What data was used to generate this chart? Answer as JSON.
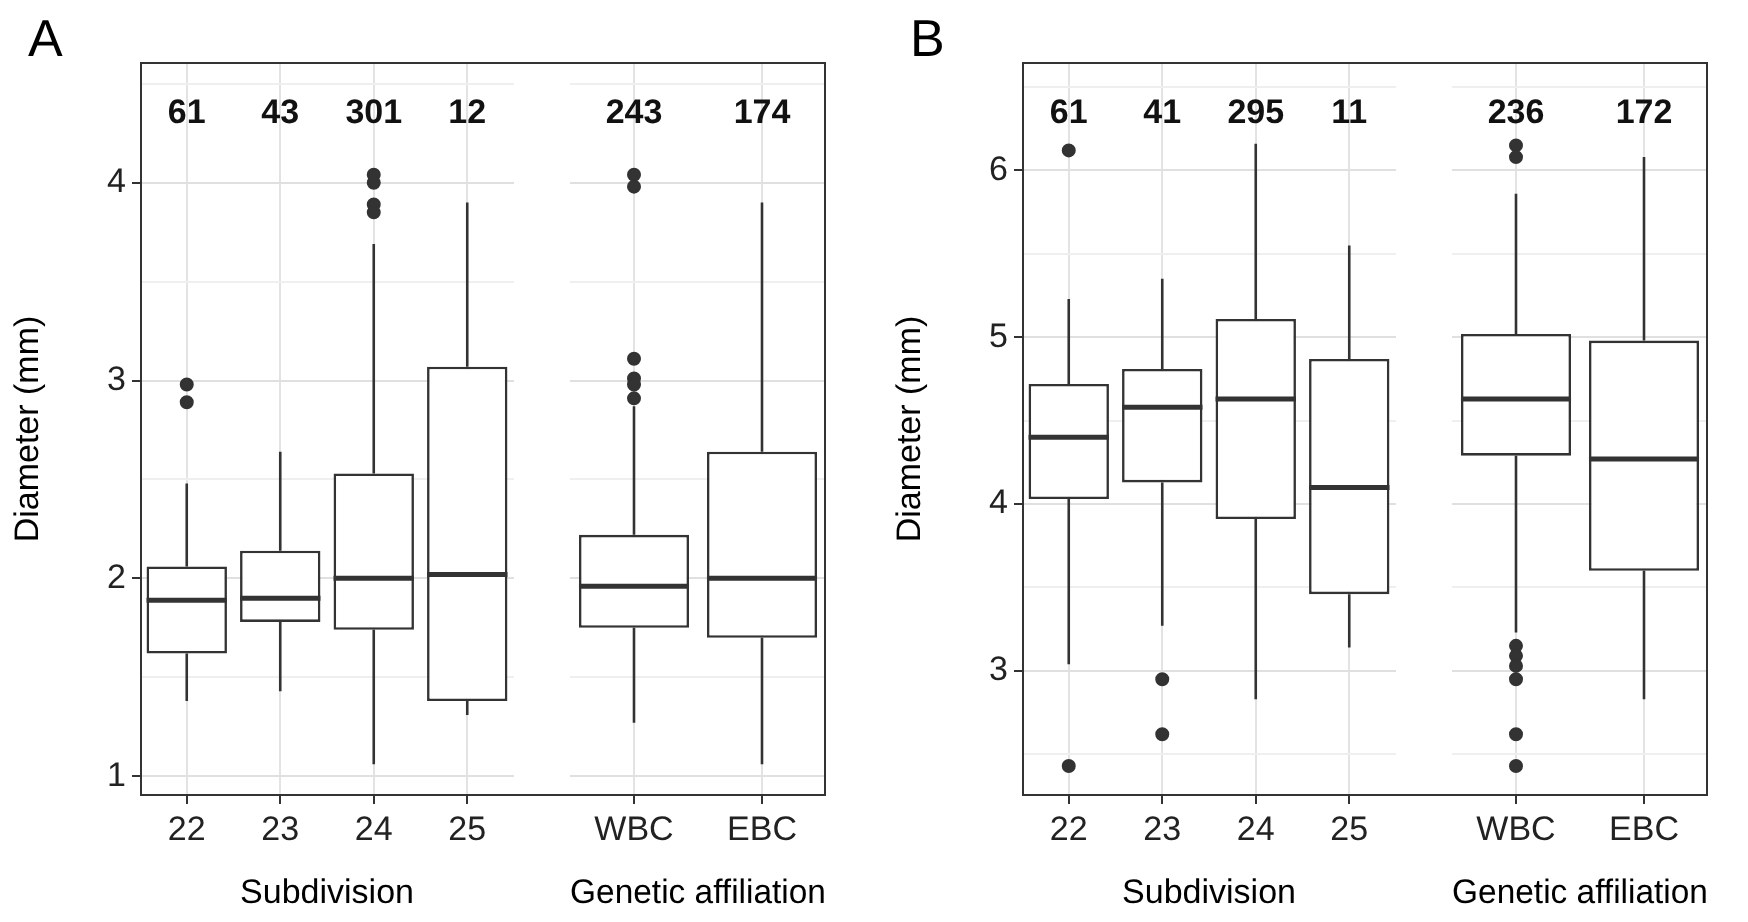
{
  "chart_data": [
    {
      "type": "box",
      "title": "A",
      "xlabel": "Subdivision",
      "ylabel": "Diameter (mm)",
      "categories": [
        "22",
        "23",
        "24",
        "25"
      ],
      "color": "#333333",
      "ylim": [
        0.9,
        4.61
      ],
      "yticks": [
        1,
        {
          "value": 1.5,
          "label": null
        },
        2,
        {
          "value": 2.5,
          "label": null
        },
        3,
        {
          "value": 3.5,
          "label": null
        },
        4,
        {
          "value": 4.5,
          "label": null
        }
      ],
      "grid": true,
      "boxes": [
        {
          "low": 1.38,
          "q1": 1.62,
          "median": 1.89,
          "q3": 2.06,
          "high": 2.48,
          "outliers": [
            2.98,
            2.89
          ]
        },
        {
          "low": 1.43,
          "q1": 1.78,
          "median": 1.9,
          "q3": 2.14,
          "high": 2.64
        },
        {
          "low": 1.06,
          "q1": 1.74,
          "median": 2.0,
          "q3": 2.53,
          "high": 3.69,
          "outliers": [
            4.04,
            4.0,
            3.89,
            3.85
          ]
        },
        {
          "low": 1.31,
          "q1": 1.38,
          "median": 2.02,
          "q3": 3.07,
          "high": 3.9
        }
      ],
      "annotations": [
        "61",
        "43",
        "301",
        "12"
      ]
    },
    {
      "type": "box",
      "xlabel": "Genetic affiliation",
      "categories": [
        "WBC",
        "EBC"
      ],
      "color": "#333333",
      "ylim": [
        0.9,
        4.61
      ],
      "yticks": [
        1,
        {
          "value": 1.5,
          "label": null
        },
        2,
        {
          "value": 2.5,
          "label": null
        },
        3,
        {
          "value": 3.5,
          "label": null
        },
        4,
        {
          "value": 4.5,
          "label": null
        }
      ],
      "grid": true,
      "tick_labels": "x",
      "boxes": [
        {
          "low": 1.27,
          "q1": 1.75,
          "median": 1.96,
          "q3": 2.22,
          "high": 2.87,
          "outliers": [
            4.04,
            3.98,
            3.11,
            3.01,
            2.98,
            2.91
          ]
        },
        {
          "low": 1.06,
          "q1": 1.7,
          "median": 2.0,
          "q3": 2.64,
          "high": 3.9
        }
      ],
      "annotations": [
        "243",
        "174"
      ]
    },
    {
      "type": "box",
      "title": "B",
      "xlabel": "Subdivision",
      "ylabel": "Diameter (mm)",
      "categories": [
        "22",
        "23",
        "24",
        "25"
      ],
      "color": "#333333",
      "ylim": [
        2.25,
        6.65
      ],
      "yticks": [
        {
          "value": 2.5,
          "label": null
        },
        3,
        {
          "value": 3.5,
          "label": null
        },
        4,
        {
          "value": 4.5,
          "label": null
        },
        5,
        {
          "value": 5.5,
          "label": null
        },
        6,
        {
          "value": 6.5,
          "label": null
        }
      ],
      "grid": true,
      "boxes": [
        {
          "low": 3.04,
          "q1": 4.03,
          "median": 4.4,
          "q3": 4.72,
          "high": 5.23,
          "outliers": [
            6.12,
            2.43
          ]
        },
        {
          "low": 3.27,
          "q1": 4.13,
          "median": 4.58,
          "q3": 4.81,
          "high": 5.35,
          "outliers": [
            2.95,
            2.62
          ]
        },
        {
          "low": 2.83,
          "q1": 3.91,
          "median": 4.63,
          "q3": 5.11,
          "high": 6.16
        },
        {
          "low": 3.14,
          "q1": 3.46,
          "median": 4.1,
          "q3": 4.87,
          "high": 5.55
        }
      ],
      "annotations": [
        "61",
        "41",
        "295",
        "11"
      ]
    },
    {
      "type": "box",
      "xlabel": "Genetic affiliation",
      "categories": [
        "WBC",
        "EBC"
      ],
      "color": "#333333",
      "ylim": [
        2.25,
        6.65
      ],
      "yticks": [
        {
          "value": 2.5,
          "label": null
        },
        3,
        {
          "value": 3.5,
          "label": null
        },
        4,
        {
          "value": 4.5,
          "label": null
        },
        5,
        {
          "value": 5.5,
          "label": null
        },
        6,
        {
          "value": 6.5,
          "label": null
        }
      ],
      "grid": true,
      "tick_labels": "x",
      "boxes": [
        {
          "low": 3.23,
          "q1": 4.29,
          "median": 4.63,
          "q3": 5.02,
          "high": 5.86,
          "outliers": [
            6.15,
            6.08,
            3.15,
            3.09,
            3.03,
            2.95,
            2.62,
            2.43
          ]
        },
        {
          "low": 2.83,
          "q1": 3.6,
          "median": 4.27,
          "q3": 4.98,
          "high": 6.08
        }
      ],
      "annotations": [
        "236",
        "172"
      ]
    }
  ]
}
